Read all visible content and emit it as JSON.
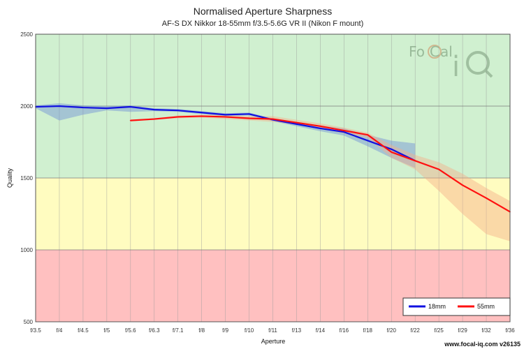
{
  "chart_data": {
    "type": "line",
    "title": "Normalised Aperture Sharpness",
    "subtitle": "AF-S DX Nikkor 18-55mm f/3.5-5.6G VR II (Nikon F mount)",
    "xlabel": "Aperture",
    "ylabel": "Quality",
    "categories": [
      "f/3.5",
      "f/4",
      "f/4.5",
      "f/5",
      "f/5.6",
      "f/6.3",
      "f/7.1",
      "f/8",
      "f/9",
      "f/10",
      "f/11",
      "f/13",
      "f/14",
      "f/16",
      "f/18",
      "f/20",
      "f/22",
      "f/25",
      "f/29",
      "f/32",
      "f/36"
    ],
    "ylim": [
      500,
      2500
    ],
    "yticks": [
      500,
      1000,
      1500,
      2000,
      2500
    ],
    "bands": [
      {
        "from": 500,
        "to": 1000,
        "color": "#ffc0c0"
      },
      {
        "from": 1000,
        "to": 1500,
        "color": "#fffcc0"
      },
      {
        "from": 1500,
        "to": 2500,
        "color": "#d0f0d0"
      }
    ],
    "grid": true,
    "legend_position": "bottom-right",
    "series": [
      {
        "name": "18mm",
        "color": "#1010e0",
        "band_color": "#6f8fd8",
        "x": [
          "f/3.5",
          "f/4",
          "f/4.5",
          "f/5",
          "f/5.6",
          "f/6.3",
          "f/7.1",
          "f/8",
          "f/9",
          "f/10",
          "f/11",
          "f/13",
          "f/14",
          "f/16",
          "f/18",
          "f/20",
          "f/22"
        ],
        "values": [
          1995,
          2000,
          1990,
          1985,
          1995,
          1975,
          1970,
          1955,
          1940,
          1945,
          1905,
          1875,
          1845,
          1820,
          1760,
          1700,
          1620
        ],
        "upper": [
          2005,
          2020,
          2005,
          2000,
          2005,
          1985,
          1980,
          1965,
          1950,
          1955,
          1915,
          1890,
          1865,
          1845,
          1800,
          1760,
          1740
        ],
        "lower": [
          1985,
          1900,
          1940,
          1970,
          1960,
          1965,
          1960,
          1945,
          1930,
          1935,
          1895,
          1860,
          1825,
          1795,
          1720,
          1640,
          1570
        ]
      },
      {
        "name": "55mm",
        "color": "#ff1010",
        "band_color": "#f5b08a",
        "x": [
          "f/5.6",
          "f/6.3",
          "f/7.1",
          "f/8",
          "f/9",
          "f/10",
          "f/11",
          "f/13",
          "f/14",
          "f/16",
          "f/18",
          "f/20",
          "f/22",
          "f/25",
          "f/29",
          "f/32",
          "f/36"
        ],
        "values": [
          1900,
          1910,
          1925,
          1930,
          1925,
          1915,
          1910,
          1885,
          1860,
          1830,
          1800,
          1680,
          1620,
          1560,
          1450,
          1360,
          1265
        ],
        "upper": [
          1905,
          1915,
          1935,
          1940,
          1940,
          1930,
          1930,
          1905,
          1880,
          1850,
          1815,
          1730,
          1660,
          1610,
          1530,
          1430,
          1340
        ],
        "lower": [
          1895,
          1905,
          1915,
          1920,
          1910,
          1900,
          1890,
          1870,
          1845,
          1810,
          1780,
          1640,
          1560,
          1410,
          1250,
          1110,
          1060
        ]
      }
    ]
  },
  "logo": {
    "text_left": "Fo",
    "text_mid": "C",
    "text_right": "al",
    "text_iq_i": "i",
    "text_iq_q": "Q"
  },
  "footer": "www.focal-iq.com  v26135"
}
